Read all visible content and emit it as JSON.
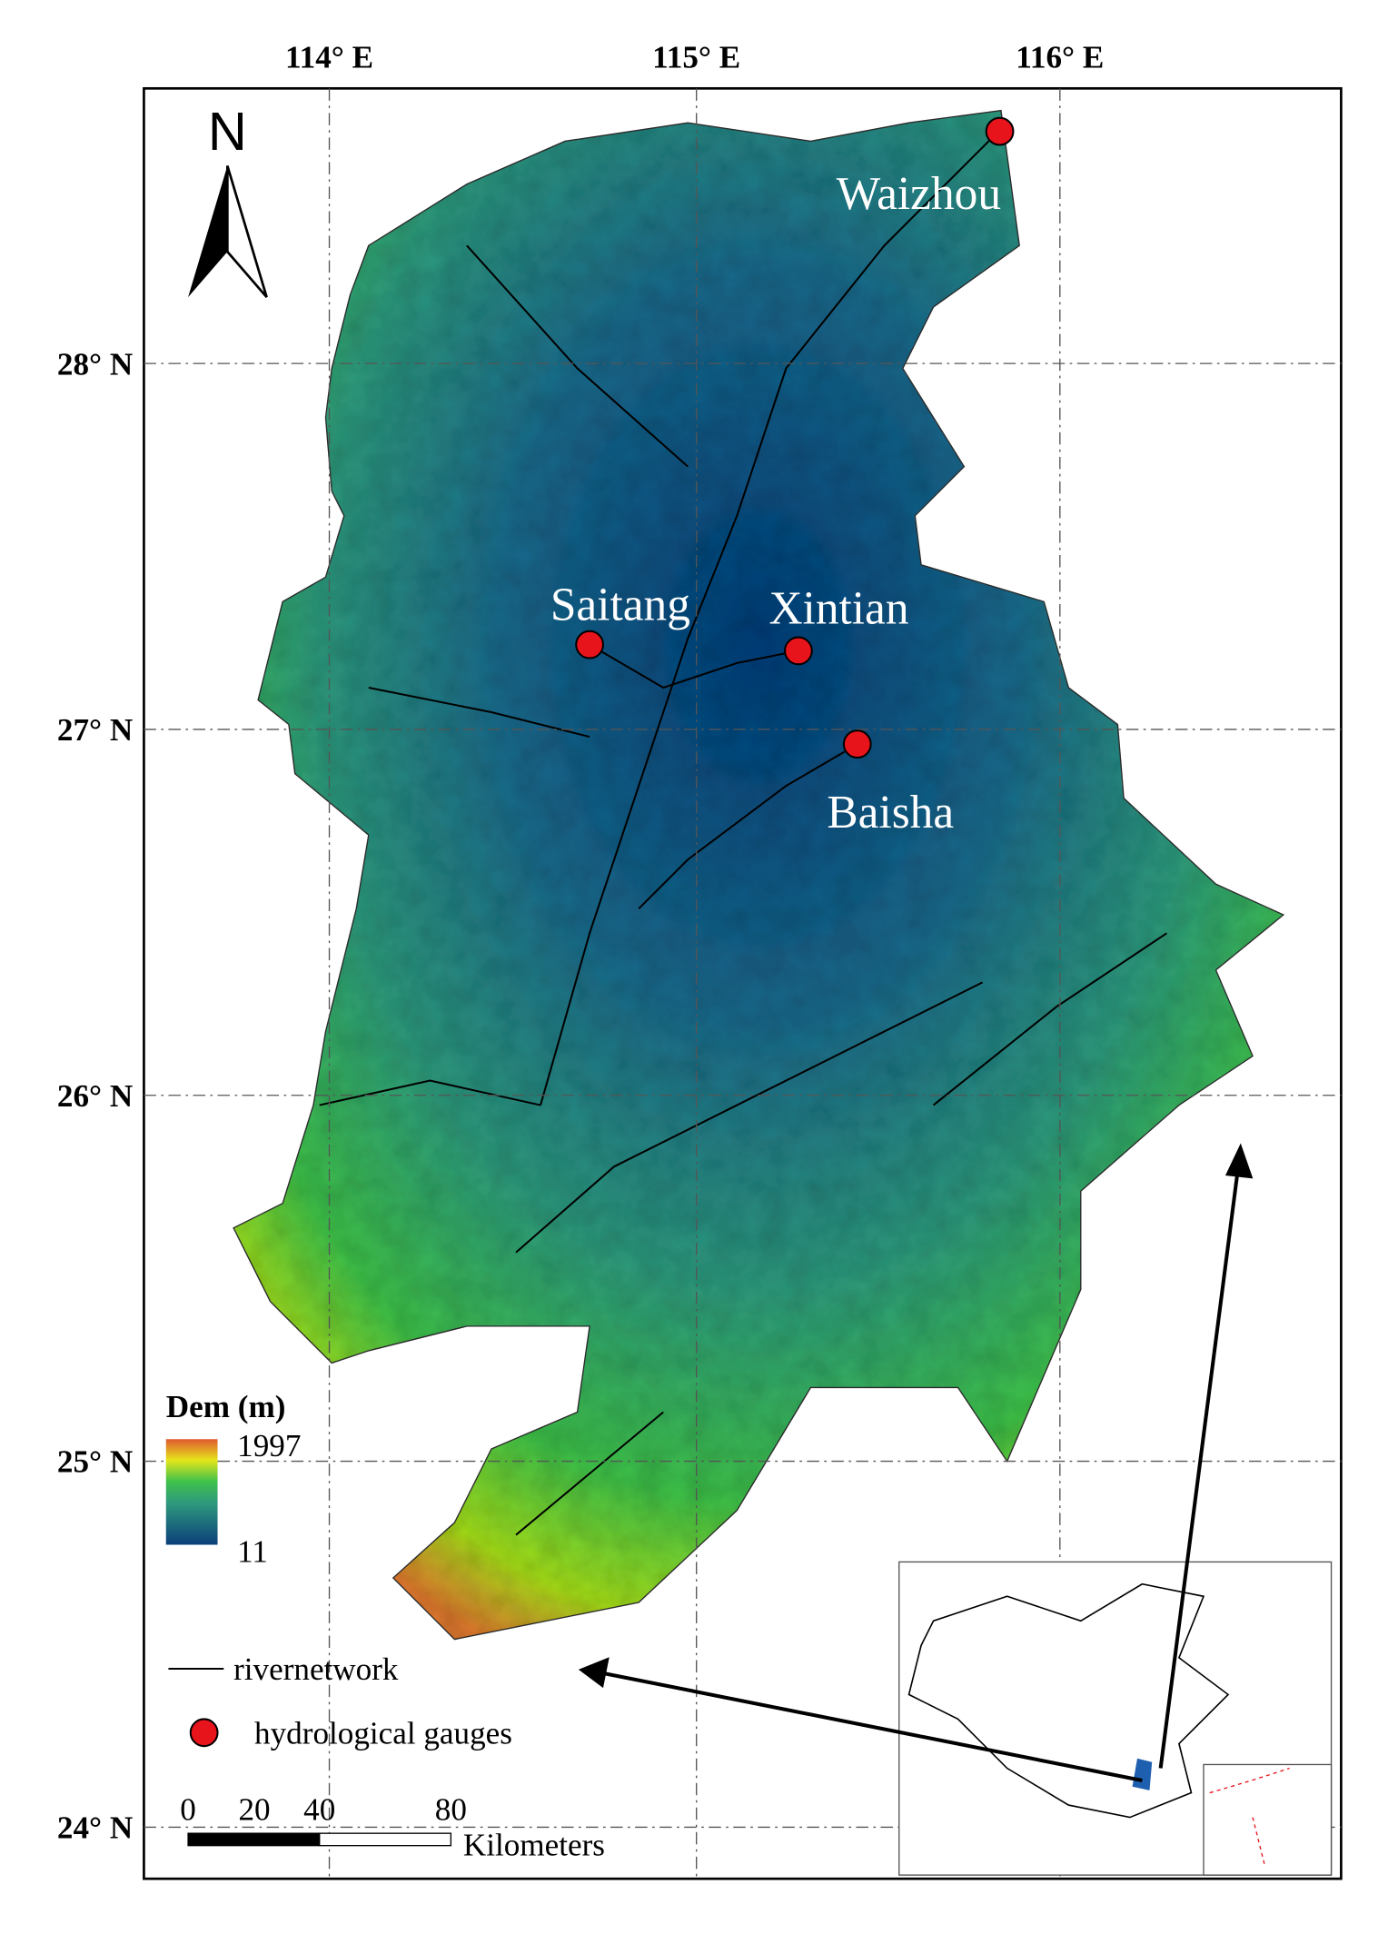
{
  "map": {
    "north": "N",
    "lon_labels": [
      "114° E",
      "115° E",
      "116° E"
    ],
    "lat_labels": [
      "28° N",
      "27° N",
      "26° N",
      "25° N",
      "24° N"
    ],
    "gauges": [
      "Waizhou",
      "Saitang",
      "Xintian",
      "Baisha"
    ],
    "legend": {
      "title": "Dem (m)",
      "max": "1997",
      "min": "11",
      "river": "rivernetwork",
      "gauge": "hydrological gauges"
    },
    "scale": {
      "ticks": [
        "0",
        "20",
        "40",
        "80"
      ],
      "unit": "Kilometers"
    }
  }
}
